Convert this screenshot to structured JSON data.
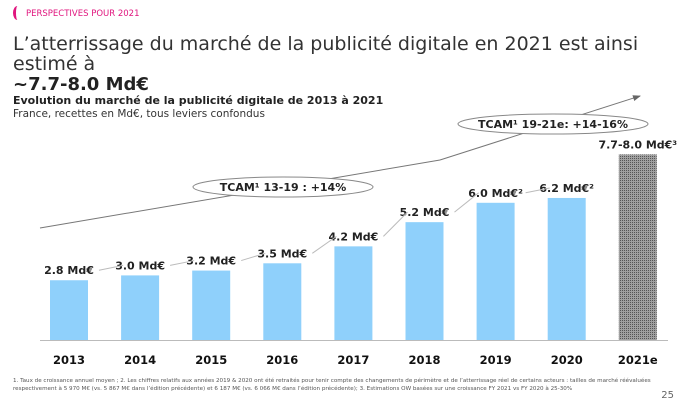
{
  "section": "PERSPECTIVES POUR 2021",
  "title": "L’atterrissage du marché de la publicité digitale en 2021 est ainsi estimé à",
  "title_bold": "~7.7-8.0 Md€",
  "chart_data": {
    "type": "bar",
    "title": "Evolution du marché de la publicité digitale de 2013 à 2021",
    "subtitle": "France, recettes en Md€, tous leviers confondus",
    "categories": [
      "2013",
      "2014",
      "2015",
      "2016",
      "2017",
      "2018",
      "2019",
      "2020",
      "2021e"
    ],
    "values": [
      2.8,
      3.0,
      3.2,
      3.5,
      4.2,
      5.2,
      6.0,
      6.2,
      8.0
    ],
    "data_labels": [
      "2.8 Md€",
      "3.0 Md€",
      "3.2 Md€",
      "3.5 Md€",
      "4.2 Md€",
      "5.2 Md€",
      "6.0 Md€²",
      "6.2 Md€²",
      "7.7-8.0 Md€³"
    ],
    "estimate_range": [
      7.7,
      8.0
    ],
    "colors": {
      "actual": "#8fd0fb",
      "estimate": "#8a8a8a"
    },
    "annotations": [
      "TCAM¹ 13-19 : +14%",
      "TCAM¹ 19-21e: +14-16%"
    ]
  },
  "footnote": "1. Taux de croissance annuel moyen ; 2. Les chiffres relatifs aux années 2019 & 2020 ont été retraités pour tenir compte des changements de périmètre et de l’atterrissage réel de certains acteurs : tailles de marché réévaluées respectivement à 5 970 M€ (vs. 5 867 M€ dans l’édition précédente) et 6 187 M€ (vs. 6 066 M€ dans l’édition précédente); 3. Estimations OW basées sur une croissance FY 2021 vs FY 2020 à 25-30%",
  "page_number": "25"
}
